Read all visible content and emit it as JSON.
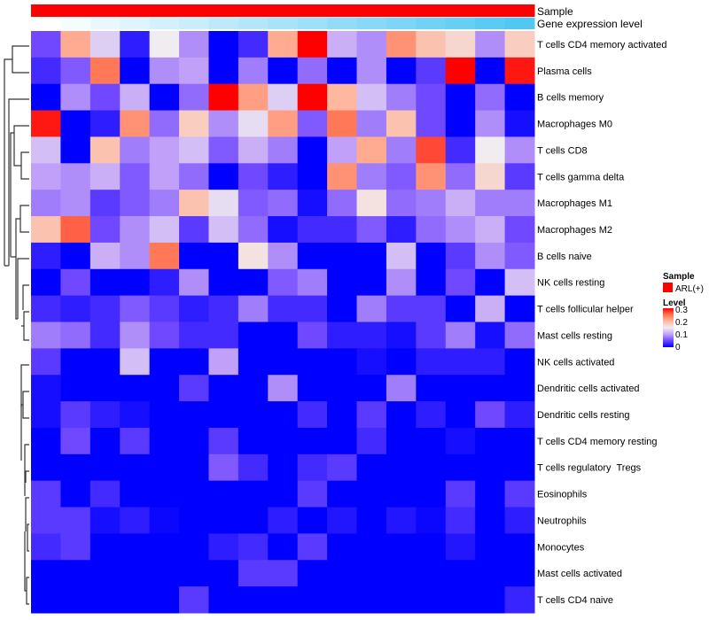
{
  "chart_data": {
    "type": "heatmap",
    "title": "",
    "color_scale": {
      "name": "Level",
      "min": 0,
      "max": 0.3,
      "ticks": [
        "0",
        "0.1",
        "0.2",
        "0.3"
      ],
      "low": "#0000ff",
      "mid": "#f0ecf0",
      "high": "#ff0000"
    },
    "annotations": {
      "sample": {
        "label": "Sample",
        "legend_entry": "ARL(+)",
        "color": "#ff0000"
      },
      "gene_expression": {
        "label": "Gene expression level",
        "color_low": "#ffffff",
        "color_high": "#4fc8f5"
      }
    },
    "legend": {
      "sample_title": "Sample",
      "level_title": "Level",
      "placement": "right"
    },
    "rows": [
      "T cells CD4 memory activated",
      "Plasma cells",
      "B cells memory",
      "Macrophages M0",
      "T cells CD8",
      "T cells gamma delta",
      "Macrophages M1",
      "Macrophages M2",
      "B cells naive",
      "NK cells resting",
      "T cells follicular helper",
      "Mast cells resting",
      "NK cells activated",
      "Dendritic cells activated",
      "Dendritic cells resting",
      "T cells CD4 memory resting",
      "T cells regulatory  Tregs",
      "Eosinophils",
      "Neutrophils",
      "Monocytes",
      "Mast cells activated",
      "T cells CD4 naive"
    ],
    "n_columns": 17,
    "values": [
      [
        0.05,
        0.21,
        0.13,
        0.02,
        0.15,
        0.09,
        0,
        0.03,
        0.21,
        0.3,
        0.11,
        0.09,
        0.23,
        0.19,
        0.17,
        0.09,
        0.18
      ],
      [
        0.03,
        0.06,
        0.25,
        0,
        0.09,
        0.1,
        0,
        0.08,
        0,
        0.07,
        0,
        0.09,
        0,
        0.04,
        0.3,
        0,
        0.29
      ],
      [
        0,
        0.09,
        0.05,
        0.11,
        0,
        0.07,
        0.3,
        0.22,
        0.13,
        0.3,
        0.2,
        0.12,
        0.08,
        0.05,
        0,
        0.07,
        0
      ],
      [
        0.29,
        0,
        0.02,
        0.23,
        0.07,
        0.18,
        0.09,
        0.14,
        0.22,
        0.06,
        0.25,
        0.08,
        0.19,
        0.05,
        0,
        0.09,
        0.01
      ],
      [
        0.12,
        0,
        0.19,
        0.08,
        0.1,
        0.12,
        0.06,
        0.11,
        0.08,
        0,
        0.1,
        0.21,
        0.08,
        0.27,
        0.03,
        0.15,
        0.09
      ],
      [
        0.1,
        0.09,
        0.11,
        0.06,
        0.1,
        0.07,
        0,
        0.05,
        0.02,
        0,
        0.23,
        0.08,
        0.06,
        0.23,
        0.07,
        0.17,
        0.04
      ],
      [
        0.08,
        0.09,
        0.04,
        0.06,
        0.08,
        0.19,
        0.14,
        0.06,
        0.07,
        0.01,
        0.07,
        0.16,
        0.07,
        0.08,
        0.11,
        0.08,
        0.08
      ],
      [
        0.19,
        0.26,
        0.05,
        0.09,
        0.12,
        0.04,
        0.12,
        0.07,
        0.01,
        0.03,
        0.03,
        0.06,
        0.02,
        0.07,
        0.09,
        0.11,
        0.05
      ],
      [
        0.02,
        0,
        0.11,
        0.09,
        0.25,
        0,
        0,
        0.16,
        0.09,
        0,
        0,
        0,
        0.12,
        0,
        0.04,
        0.09,
        0.06
      ],
      [
        0,
        0.05,
        0,
        0,
        0.02,
        0.09,
        0,
        0,
        0.06,
        0.08,
        0,
        0,
        0.09,
        0,
        0.05,
        0,
        0.12
      ],
      [
        0.03,
        0.02,
        0.03,
        0.06,
        0.04,
        0.02,
        0.03,
        0.08,
        0.03,
        0.03,
        0,
        0.08,
        0.04,
        0.04,
        0,
        0.11,
        0
      ],
      [
        0.08,
        0.07,
        0.03,
        0.09,
        0.05,
        0.03,
        0.03,
        0,
        0,
        0.05,
        0.02,
        0.02,
        0.01,
        0.04,
        0.08,
        0.01,
        0.07
      ],
      [
        0.04,
        0,
        0,
        0.12,
        0,
        0,
        0.1,
        0,
        0,
        0,
        0,
        0.01,
        0,
        0.02,
        0.02,
        0.02,
        0
      ],
      [
        0.01,
        0,
        0,
        0,
        0,
        0.04,
        0,
        0,
        0.09,
        0,
        0,
        0,
        0.08,
        0,
        0,
        0,
        0
      ],
      [
        0.01,
        0.04,
        0.02,
        0.01,
        0,
        0,
        0,
        0,
        0,
        0.03,
        0,
        0.04,
        0,
        0.02,
        0,
        0.05,
        0.02
      ],
      [
        0,
        0.05,
        0,
        0.04,
        0,
        0,
        0.04,
        0,
        0,
        0,
        0,
        0.03,
        0,
        0,
        0.01,
        0,
        0
      ],
      [
        0,
        0,
        0,
        0,
        0,
        0,
        0.06,
        0.03,
        0,
        0.03,
        0.04,
        0,
        0,
        0,
        0,
        0,
        0
      ],
      [
        0.04,
        0,
        0.03,
        0,
        0,
        0,
        0,
        0,
        0,
        0.04,
        0,
        0,
        0,
        0,
        0.04,
        0,
        0.04
      ],
      [
        0.04,
        0.04,
        0.01,
        0.02,
        0.005,
        0,
        0,
        0,
        0.02,
        0,
        0.015,
        0,
        0.015,
        0.005,
        0.03,
        0,
        0.02
      ],
      [
        0.03,
        0.04,
        0,
        0,
        0,
        0,
        0.02,
        0.03,
        0,
        0.04,
        0,
        0,
        0,
        0,
        0.015,
        0,
        0
      ],
      [
        0,
        0,
        0,
        0,
        0,
        0,
        0,
        0.04,
        0.04,
        0,
        0,
        0,
        0,
        0,
        0,
        0,
        0
      ],
      [
        0,
        0,
        0,
        0,
        0,
        0.04,
        0,
        0,
        0,
        0,
        0,
        0,
        0,
        0,
        0,
        0,
        0.025
      ]
    ]
  }
}
